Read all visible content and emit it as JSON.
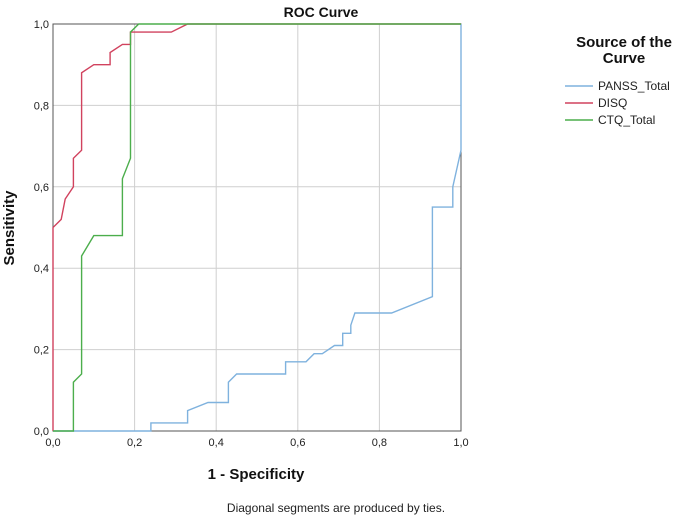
{
  "chart_data": {
    "type": "line",
    "title": "ROC Curve",
    "xlabel": "1 - Specificity",
    "ylabel": "Sensitivity",
    "xlim": [
      0,
      1
    ],
    "ylim": [
      0,
      1
    ],
    "x_ticks": [
      "0,0",
      "0,2",
      "0,4",
      "0,6",
      "0,8",
      "1,0"
    ],
    "y_ticks": [
      "0,0",
      "0,2",
      "0,4",
      "0,6",
      "0,8",
      "1,0"
    ],
    "grid": true,
    "legend": {
      "title_line1": "Source of the",
      "title_line2": "Curve",
      "placement": "right"
    },
    "footnote": "Diagonal segments are produced by ties.",
    "series": [
      {
        "name": "PANSS_Total",
        "color": "#7fb2de",
        "x": [
          0,
          0.24,
          0.24,
          0.33,
          0.33,
          0.38,
          0.43,
          0.43,
          0.45,
          0.57,
          0.57,
          0.62,
          0.64,
          0.66,
          0.69,
          0.71,
          0.71,
          0.73,
          0.73,
          0.74,
          0.83,
          0.93,
          0.93,
          0.98,
          0.98,
          1.0,
          1.0
        ],
        "y": [
          0,
          0,
          0.02,
          0.02,
          0.05,
          0.07,
          0.07,
          0.12,
          0.14,
          0.14,
          0.17,
          0.17,
          0.19,
          0.19,
          0.21,
          0.21,
          0.24,
          0.24,
          0.26,
          0.29,
          0.29,
          0.33,
          0.55,
          0.55,
          0.6,
          0.69,
          1.0
        ]
      },
      {
        "name": "DISQ",
        "color": "#d1425e",
        "x": [
          0,
          0,
          0.02,
          0.03,
          0.05,
          0.05,
          0.07,
          0.07,
          0.1,
          0.14,
          0.14,
          0.17,
          0.19,
          0.19,
          0.29,
          0.33,
          1.0
        ],
        "y": [
          0,
          0.5,
          0.52,
          0.57,
          0.6,
          0.67,
          0.69,
          0.88,
          0.9,
          0.9,
          0.93,
          0.95,
          0.95,
          0.98,
          0.98,
          1.0,
          1.0
        ]
      },
      {
        "name": "CTQ_Total",
        "color": "#4cae4c",
        "x": [
          0,
          0.05,
          0.05,
          0.07,
          0.07,
          0.1,
          0.17,
          0.17,
          0.19,
          0.19,
          0.21,
          0.22,
          1.0
        ],
        "y": [
          0,
          0,
          0.12,
          0.14,
          0.43,
          0.48,
          0.48,
          0.62,
          0.67,
          0.98,
          1.0,
          1.0,
          1.0
        ]
      }
    ]
  }
}
